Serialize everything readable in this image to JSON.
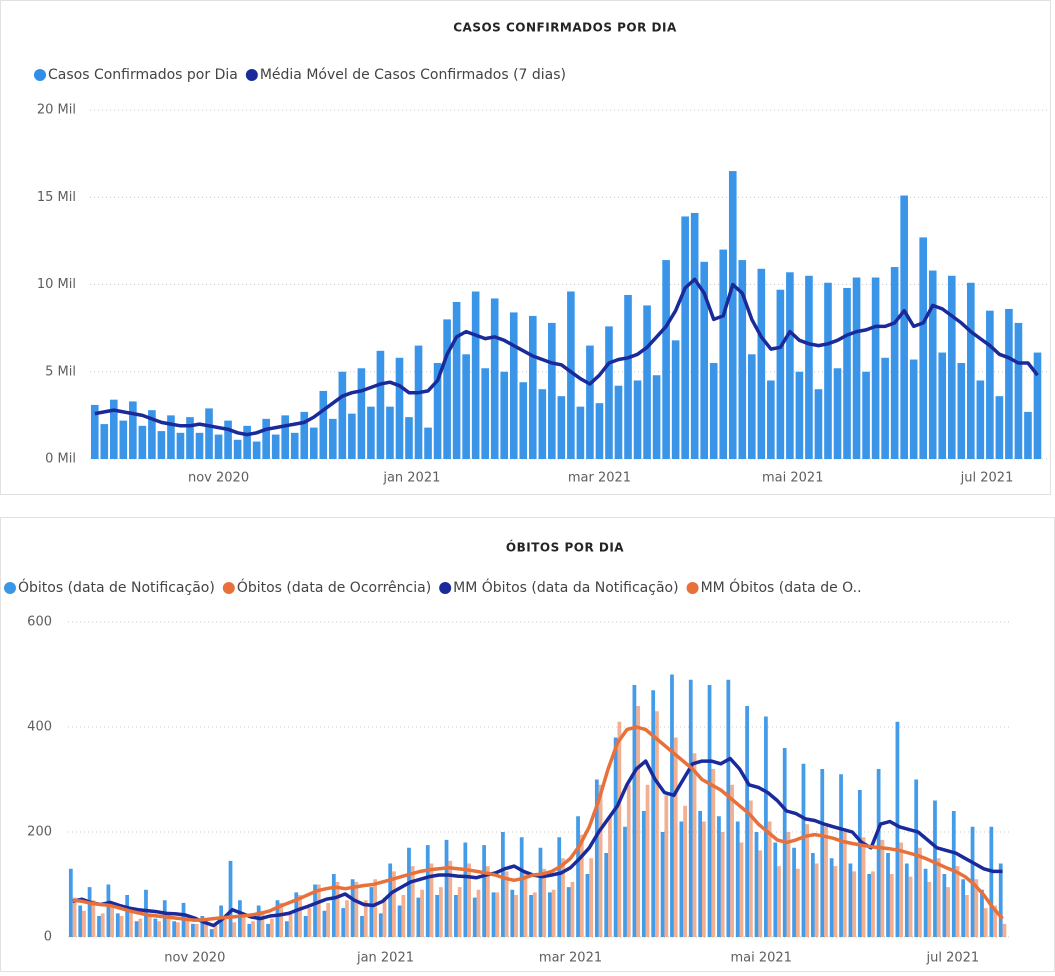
{
  "chart_data": [
    {
      "type": "combo",
      "title": "CASOS CONFIRMADOS POR DIA",
      "xlim": [
        -0.5,
        100
      ],
      "xticks": [
        {
          "value": 13,
          "label": "nov 2020"
        },
        {
          "value": 33.3,
          "label": "jan 2021"
        },
        {
          "value": 53,
          "label": "mar 2021"
        },
        {
          "value": 73.3,
          "label": "mai 2021"
        },
        {
          "value": 93.7,
          "label": "jul 2021"
        }
      ],
      "ylim": [
        0,
        20
      ],
      "yticks": [
        {
          "value": 0,
          "label": "0 Mil"
        },
        {
          "value": 5,
          "label": "5 Mil"
        },
        {
          "value": 10,
          "label": "10 Mil"
        },
        {
          "value": 15,
          "label": "15 Mil"
        },
        {
          "value": 20,
          "label": "20 Mil"
        }
      ],
      "grid": true,
      "series": [
        {
          "name": "Casos Confirmados por Dia",
          "type": "bar",
          "color": "#2f8fe8",
          "values": [
            3.1,
            2.0,
            3.4,
            2.2,
            3.3,
            1.9,
            2.8,
            1.6,
            2.5,
            1.5,
            2.4,
            1.5,
            2.9,
            1.4,
            2.2,
            1.1,
            1.9,
            1.0,
            2.3,
            1.4,
            2.5,
            1.5,
            2.7,
            1.8,
            3.9,
            2.3,
            5.0,
            2.6,
            5.2,
            3.0,
            6.2,
            3.0,
            5.8,
            2.4,
            6.5,
            1.8,
            5.5,
            8.0,
            9.0,
            6.0,
            9.6,
            5.2,
            9.2,
            5.0,
            8.4,
            4.4,
            8.2,
            4.0,
            7.8,
            3.6,
            9.6,
            3.0,
            6.5,
            3.2,
            7.6,
            4.2,
            9.4,
            4.5,
            8.8,
            4.8,
            11.4,
            6.8,
            13.9,
            14.1,
            11.3,
            5.5,
            12.0,
            16.5,
            11.4,
            6.0,
            10.9,
            4.5,
            9.7,
            10.7,
            5.0,
            10.5,
            4.0,
            10.1,
            5.2,
            9.8,
            10.4,
            5.0,
            10.4,
            5.8,
            11.0,
            15.1,
            5.7,
            12.7,
            10.8,
            6.1,
            10.5,
            5.5,
            10.1,
            4.5,
            8.5,
            3.6,
            8.6,
            7.8,
            2.7,
            6.1
          ]
        },
        {
          "name": "Média Móvel de Casos Confirmados (7 dias)",
          "type": "line",
          "color": "#1a2a9a",
          "values": [
            2.6,
            2.7,
            2.8,
            2.7,
            2.6,
            2.5,
            2.3,
            2.1,
            2.0,
            1.9,
            1.9,
            2.0,
            1.9,
            1.8,
            1.7,
            1.5,
            1.4,
            1.5,
            1.7,
            1.8,
            1.9,
            2.0,
            2.1,
            2.4,
            2.8,
            3.2,
            3.6,
            3.8,
            3.9,
            4.1,
            4.3,
            4.4,
            4.2,
            3.8,
            3.8,
            3.9,
            4.5,
            6.0,
            7.0,
            7.3,
            7.1,
            6.9,
            7.0,
            6.8,
            6.5,
            6.2,
            5.9,
            5.7,
            5.5,
            5.4,
            5.0,
            4.6,
            4.3,
            4.8,
            5.5,
            5.7,
            5.8,
            6.0,
            6.4,
            7.0,
            7.6,
            8.5,
            9.8,
            10.3,
            9.5,
            8.0,
            8.2,
            10.0,
            9.5,
            8.0,
            7.0,
            6.3,
            6.4,
            7.3,
            6.8,
            6.6,
            6.5,
            6.6,
            6.8,
            7.1,
            7.3,
            7.4,
            7.6,
            7.6,
            7.8,
            8.5,
            7.6,
            7.8,
            8.8,
            8.6,
            8.2,
            7.8,
            7.3,
            6.9,
            6.5,
            6.0,
            5.8,
            5.5,
            5.5,
            4.8
          ]
        }
      ]
    },
    {
      "type": "combo",
      "title": "ÓBITOS POR DIA",
      "xlim": [
        -0.5,
        100
      ],
      "xticks": [
        {
          "value": 13,
          "label": "nov 2020"
        },
        {
          "value": 33.3,
          "label": "jan 2021"
        },
        {
          "value": 53,
          "label": "mar 2021"
        },
        {
          "value": 73.3,
          "label": "mai 2021"
        },
        {
          "value": 93.7,
          "label": "jul 2021"
        }
      ],
      "ylim": [
        0,
        600
      ],
      "yticks": [
        0,
        200,
        400,
        600
      ],
      "grid": true,
      "series": [
        {
          "name": "Óbitos (data de Notificação)",
          "type": "bar",
          "color": "#3a96e6",
          "values": [
            130,
            60,
            95,
            40,
            100,
            45,
            80,
            30,
            90,
            35,
            70,
            30,
            65,
            25,
            40,
            15,
            60,
            145,
            70,
            25,
            60,
            25,
            70,
            30,
            85,
            40,
            100,
            50,
            120,
            55,
            110,
            40,
            95,
            45,
            140,
            60,
            170,
            75,
            175,
            80,
            185,
            80,
            180,
            75,
            175,
            85,
            200,
            90,
            190,
            80,
            170,
            85,
            190,
            95,
            230,
            120,
            300,
            160,
            380,
            210,
            480,
            240,
            470,
            200,
            500,
            220,
            490,
            240,
            480,
            230,
            490,
            220,
            440,
            200,
            420,
            180,
            360,
            170,
            330,
            160,
            320,
            150,
            310,
            140,
            280,
            120,
            320,
            160,
            410,
            140,
            300,
            130,
            260,
            120,
            240,
            110,
            210,
            90,
            210,
            140
          ]
        },
        {
          "name": "Óbitos (data de Ocorrência)",
          "type": "bar",
          "color": "#e8703a",
          "values": [
            75,
            50,
            70,
            45,
            65,
            40,
            55,
            35,
            45,
            30,
            42,
            28,
            38,
            25,
            36,
            25,
            40,
            28,
            44,
            30,
            50,
            35,
            65,
            45,
            80,
            55,
            100,
            65,
            105,
            70,
            105,
            70,
            110,
            75,
            125,
            80,
            135,
            90,
            140,
            95,
            145,
            95,
            140,
            90,
            135,
            85,
            125,
            80,
            125,
            85,
            130,
            90,
            150,
            105,
            195,
            150,
            290,
            230,
            410,
            290,
            440,
            290,
            430,
            270,
            380,
            250,
            350,
            220,
            320,
            200,
            290,
            180,
            260,
            165,
            220,
            135,
            200,
            130,
            215,
            140,
            210,
            135,
            200,
            125,
            190,
            125,
            185,
            120,
            180,
            115,
            170,
            105,
            150,
            95,
            135,
            80,
            110,
            55,
            60,
            25
          ]
        },
        {
          "name": "MM Óbitos (data da Notificação)",
          "type": "line",
          "color": "#1a2a9a",
          "values": [
            68,
            72,
            65,
            62,
            66,
            60,
            55,
            52,
            50,
            48,
            45,
            44,
            42,
            36,
            28,
            22,
            35,
            52,
            45,
            38,
            35,
            40,
            42,
            45,
            52,
            58,
            65,
            72,
            75,
            82,
            70,
            62,
            60,
            68,
            85,
            95,
            105,
            110,
            115,
            118,
            118,
            116,
            115,
            113,
            118,
            122,
            130,
            135,
            125,
            118,
            115,
            118,
            122,
            132,
            150,
            170,
            200,
            225,
            250,
            290,
            320,
            335,
            300,
            275,
            270,
            300,
            330,
            335,
            335,
            330,
            340,
            320,
            290,
            285,
            275,
            260,
            240,
            235,
            225,
            222,
            215,
            210,
            205,
            200,
            180,
            170,
            215,
            220,
            210,
            205,
            200,
            185,
            170,
            165,
            160,
            150,
            140,
            130,
            125,
            125
          ]
        },
        {
          "name": "MM Óbitos (data de O..",
          "type": "line",
          "color": "#e8703a",
          "values": [
            70,
            68,
            64,
            62,
            60,
            55,
            50,
            46,
            42,
            40,
            38,
            36,
            34,
            32,
            33,
            35,
            37,
            38,
            40,
            42,
            45,
            50,
            58,
            65,
            72,
            80,
            88,
            92,
            95,
            92,
            95,
            98,
            100,
            105,
            110,
            115,
            120,
            125,
            128,
            130,
            132,
            130,
            128,
            125,
            122,
            118,
            112,
            108,
            112,
            118,
            120,
            125,
            135,
            150,
            175,
            210,
            260,
            320,
            370,
            395,
            400,
            395,
            380,
            365,
            350,
            335,
            320,
            300,
            290,
            280,
            265,
            250,
            235,
            215,
            200,
            185,
            180,
            185,
            192,
            195,
            192,
            188,
            182,
            178,
            175,
            172,
            170,
            168,
            165,
            160,
            155,
            148,
            140,
            132,
            125,
            115,
            100,
            80,
            55,
            35
          ]
        }
      ]
    }
  ]
}
